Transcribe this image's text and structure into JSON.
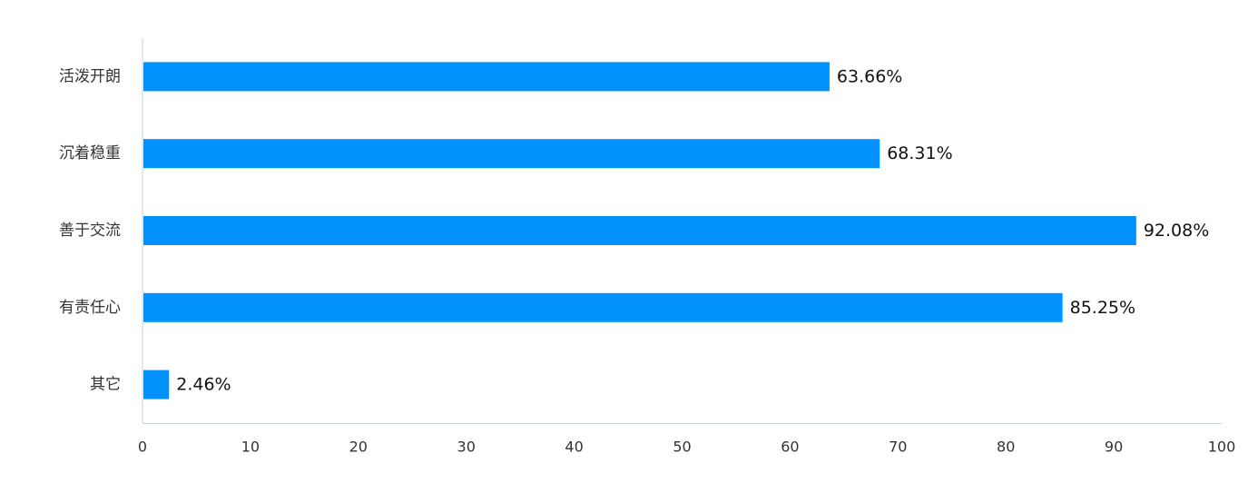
{
  "chart_data": {
    "type": "bar",
    "orientation": "horizontal",
    "title": "",
    "xlabel": "",
    "ylabel": "",
    "categories": [
      "活泼开朗",
      "沉着稳重",
      "善于交流",
      "有责任心",
      "其它"
    ],
    "values": [
      63.66,
      68.31,
      92.08,
      85.25,
      2.46
    ],
    "value_labels": [
      "63.66%",
      "68.31%",
      "92.08%",
      "85.25%",
      "2.46%"
    ],
    "xlim": [
      0,
      100
    ],
    "x_ticks": [
      0,
      10,
      20,
      30,
      40,
      50,
      60,
      70,
      80,
      90,
      100
    ],
    "grid": false,
    "legend": "none",
    "colors": {
      "bar": "#0392fb",
      "axis": "#c9d3de",
      "text": "#333333"
    }
  }
}
